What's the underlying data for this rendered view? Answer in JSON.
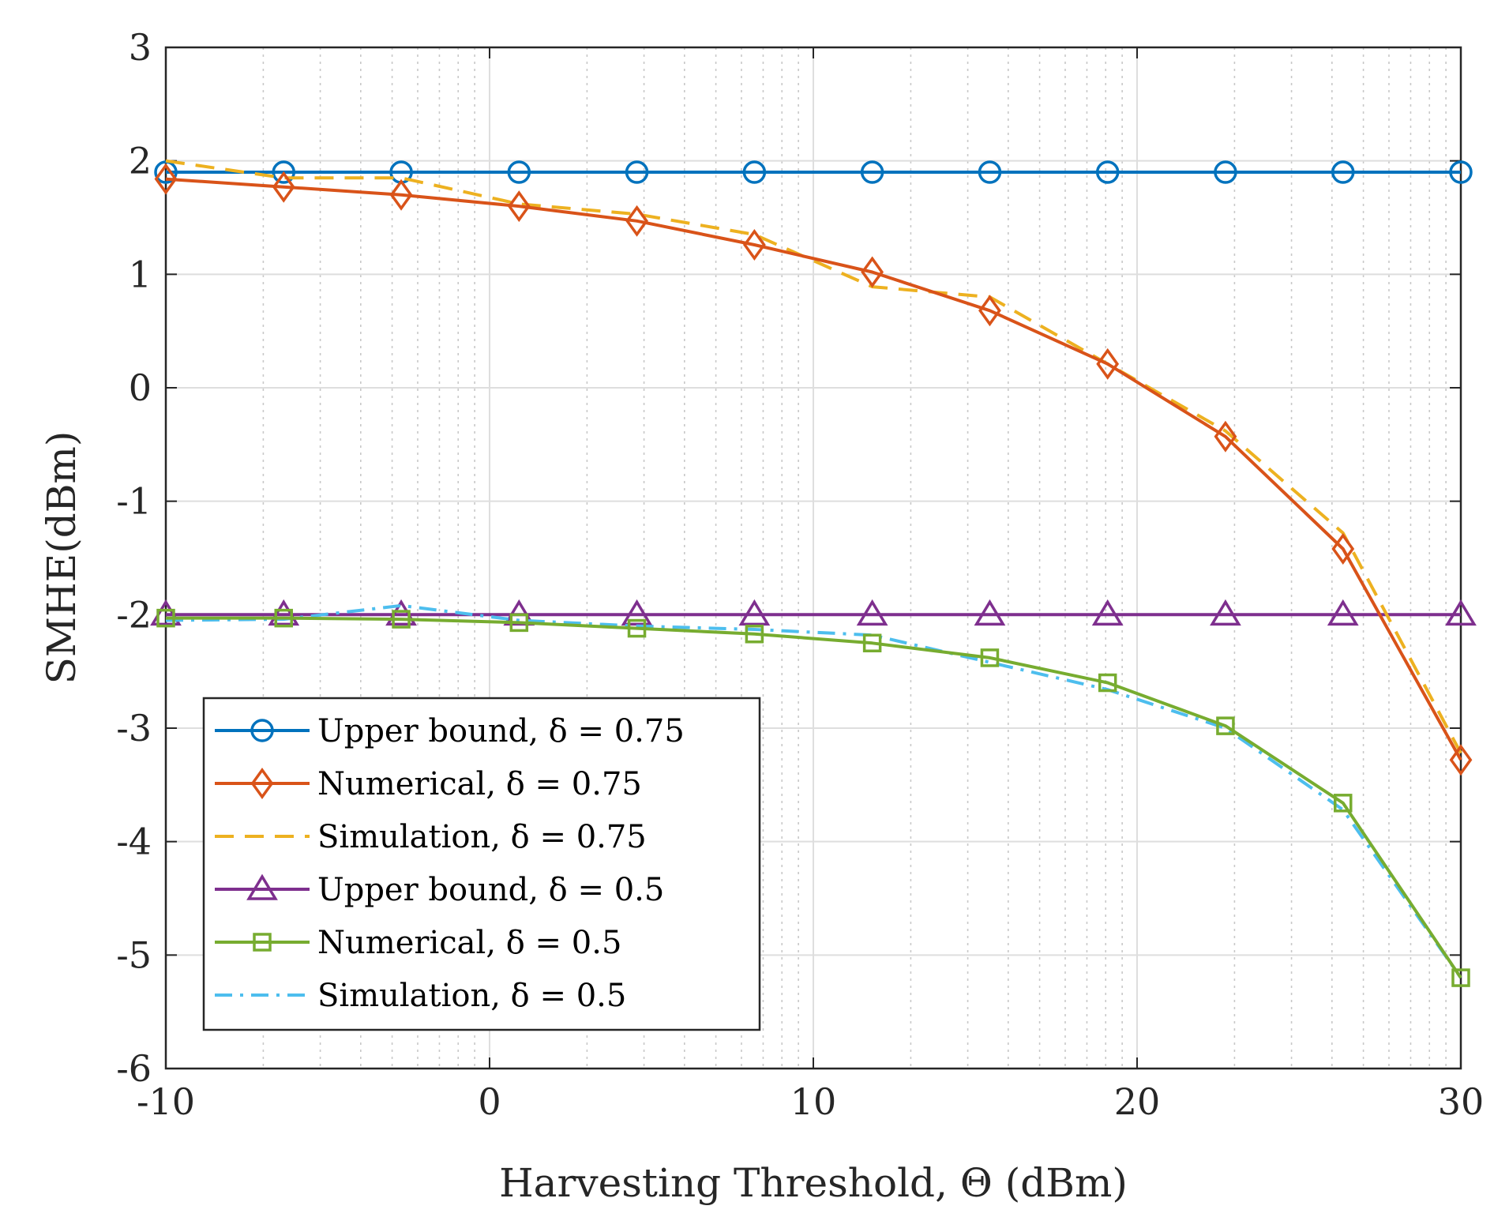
{
  "chart_data": {
    "type": "line",
    "xlabel": "Harvesting Threshold,  Θ (dBm)",
    "ylabel": "SMHE(dBm)",
    "xlim": [
      -10,
      30
    ],
    "ylim": [
      -6,
      3
    ],
    "xticks": [
      -10,
      0,
      10,
      20,
      30
    ],
    "xtick_labels": [
      "-10",
      "0",
      "10",
      "20",
      "30"
    ],
    "yticks": [
      3,
      2,
      1,
      0,
      -1,
      -2,
      -3,
      -4,
      -5,
      -6
    ],
    "ytick_labels": [
      "3",
      "2",
      "1",
      "0",
      "-1",
      "-2",
      "-3",
      "-4",
      "-5",
      "-6"
    ],
    "grid": true,
    "legend_position": "lower-left",
    "x": [
      -10,
      -6.36,
      -2.73,
      0.91,
      4.55,
      8.18,
      11.82,
      15.45,
      19.09,
      22.73,
      26.36,
      30
    ],
    "series": [
      {
        "name": "Upper bound, δ = 0.75",
        "color": "#0072BD",
        "marker": "circle",
        "line": "solid",
        "values": [
          1.9,
          1.9,
          1.9,
          1.9,
          1.9,
          1.9,
          1.9,
          1.9,
          1.9,
          1.9,
          1.9,
          1.9
        ]
      },
      {
        "name": "Numerical, δ = 0.75",
        "color": "#D95319",
        "marker": "diamond",
        "line": "solid",
        "values": [
          1.84,
          1.77,
          1.7,
          1.6,
          1.47,
          1.26,
          1.02,
          0.68,
          0.21,
          -0.43,
          -1.42,
          -3.28
        ]
      },
      {
        "name": "Simulation, δ = 0.75",
        "color": "#EDB120",
        "marker": "none",
        "line": "dashed",
        "values": [
          2.0,
          1.85,
          1.85,
          1.62,
          1.53,
          1.35,
          0.89,
          0.8,
          0.21,
          -0.38,
          -1.28,
          -3.22
        ]
      },
      {
        "name": "Upper bound, δ = 0.5",
        "color": "#7E2F8E",
        "marker": "triangle",
        "line": "solid",
        "values": [
          -2.0,
          -2.0,
          -2.0,
          -2.0,
          -2.0,
          -2.0,
          -2.0,
          -2.0,
          -2.0,
          -2.0,
          -2.0,
          -2.0
        ]
      },
      {
        "name": "Numerical, δ = 0.5",
        "color": "#77AC30",
        "marker": "square",
        "line": "solid",
        "values": [
          -2.03,
          -2.03,
          -2.04,
          -2.07,
          -2.12,
          -2.17,
          -2.25,
          -2.38,
          -2.6,
          -2.98,
          -3.66,
          -5.2
        ]
      },
      {
        "name": "Simulation, δ = 0.5",
        "color": "#4DBEEE",
        "marker": "none",
        "line": "dashdot",
        "values": [
          -2.05,
          -2.04,
          -1.92,
          -2.05,
          -2.1,
          -2.13,
          -2.18,
          -2.42,
          -2.66,
          -3.0,
          -3.72,
          -5.2
        ]
      }
    ]
  }
}
